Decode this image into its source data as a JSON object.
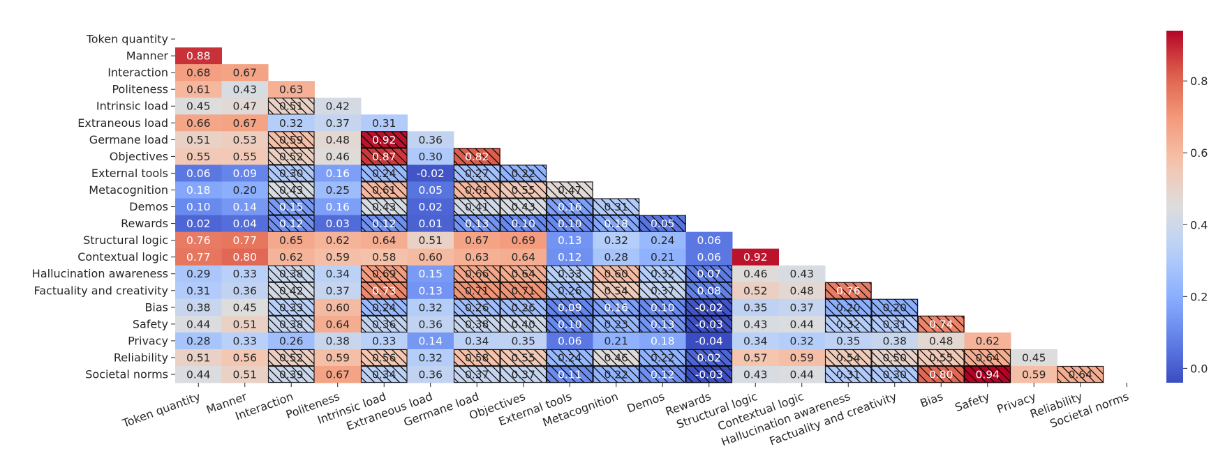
{
  "chart_data": {
    "type": "heatmap",
    "title": "",
    "xlabel": "",
    "ylabel": "",
    "row_labels": [
      "Token quantity",
      "Manner",
      "Interaction",
      "Politeness",
      "Intrinsic load",
      "Extraneous load",
      "Germane load",
      "Objectives",
      "External tools",
      "Metacognition",
      "Demos",
      "Rewards",
      "Structural logic",
      "Contextual logic",
      "Hallucination awareness",
      "Factuality and creativity",
      "Bias",
      "Safety",
      "Privacy",
      "Reliability",
      "Societal norms"
    ],
    "column_labels": [
      "Token quantity",
      "Manner",
      "Interaction",
      "Politeness",
      "Intrinsic load",
      "Extraneous load",
      "Germane load",
      "Objectives",
      "External tools",
      "Metacognition",
      "Demos",
      "Rewards",
      "Structural logic",
      "Contextual logic",
      "Hallucination awareness",
      "Factuality and creativity",
      "Bias",
      "Safety",
      "Privacy",
      "Reliability",
      "Societal norms"
    ],
    "values": [
      [],
      [
        0.88
      ],
      [
        0.68,
        0.67
      ],
      [
        0.61,
        0.43,
        0.63
      ],
      [
        0.45,
        0.47,
        0.51,
        0.42
      ],
      [
        0.66,
        0.67,
        0.32,
        0.37,
        0.31
      ],
      [
        0.51,
        0.53,
        0.59,
        0.48,
        0.92,
        0.36
      ],
      [
        0.55,
        0.55,
        0.52,
        0.46,
        0.87,
        0.3,
        0.82
      ],
      [
        0.06,
        0.09,
        0.3,
        0.16,
        0.24,
        -0.02,
        0.27,
        0.22
      ],
      [
        0.18,
        0.2,
        0.43,
        0.25,
        0.61,
        0.05,
        0.61,
        0.55,
        0.47
      ],
      [
        0.1,
        0.14,
        0.15,
        0.16,
        0.43,
        0.02,
        0.41,
        0.43,
        0.16,
        0.31
      ],
      [
        0.02,
        0.04,
        0.12,
        0.03,
        0.12,
        0.01,
        0.13,
        0.1,
        0.1,
        0.18,
        0.05
      ],
      [
        0.76,
        0.77,
        0.65,
        0.62,
        0.64,
        0.51,
        0.67,
        0.69,
        0.13,
        0.32,
        0.24,
        0.06
      ],
      [
        0.77,
        0.8,
        0.62,
        0.59,
        0.58,
        0.6,
        0.63,
        0.64,
        0.12,
        0.28,
        0.21,
        0.06,
        0.92
      ],
      [
        0.29,
        0.33,
        0.38,
        0.34,
        0.69,
        0.15,
        0.66,
        0.64,
        0.33,
        0.6,
        0.32,
        0.07,
        0.46,
        0.43
      ],
      [
        0.31,
        0.36,
        0.42,
        0.37,
        0.73,
        0.13,
        0.71,
        0.71,
        0.26,
        0.54,
        0.37,
        0.08,
        0.52,
        0.48,
        0.76
      ],
      [
        0.38,
        0.45,
        0.33,
        0.6,
        0.24,
        0.32,
        0.26,
        0.26,
        0.09,
        0.16,
        0.1,
        -0.02,
        0.35,
        0.37,
        0.2,
        0.2
      ],
      [
        0.44,
        0.51,
        0.38,
        0.64,
        0.36,
        0.36,
        0.38,
        0.4,
        0.1,
        0.23,
        0.13,
        -0.03,
        0.43,
        0.44,
        0.32,
        0.31,
        0.74
      ],
      [
        0.28,
        0.33,
        0.26,
        0.38,
        0.33,
        0.14,
        0.34,
        0.35,
        0.06,
        0.21,
        0.18,
        -0.04,
        0.34,
        0.32,
        0.35,
        0.38,
        0.48,
        0.62
      ],
      [
        0.51,
        0.56,
        0.52,
        0.59,
        0.56,
        0.32,
        0.58,
        0.55,
        0.24,
        0.46,
        0.22,
        0.02,
        0.57,
        0.59,
        0.54,
        0.5,
        0.55,
        0.64,
        0.45
      ],
      [
        0.44,
        0.51,
        0.39,
        0.67,
        0.34,
        0.36,
        0.37,
        0.37,
        0.11,
        0.22,
        0.12,
        -0.03,
        0.43,
        0.44,
        0.31,
        0.3,
        0.8,
        0.94,
        0.59,
        0.64
      ]
    ],
    "hatched": [
      [],
      [
        0
      ],
      [
        0,
        0
      ],
      [
        0,
        0,
        0
      ],
      [
        0,
        0,
        1,
        0
      ],
      [
        0,
        0,
        0,
        0,
        0
      ],
      [
        0,
        0,
        1,
        0,
        1,
        0
      ],
      [
        0,
        0,
        1,
        0,
        1,
        0,
        1
      ],
      [
        0,
        0,
        1,
        0,
        1,
        0,
        1,
        1
      ],
      [
        0,
        0,
        1,
        0,
        1,
        0,
        1,
        1,
        1
      ],
      [
        0,
        0,
        1,
        0,
        1,
        0,
        1,
        1,
        1,
        1
      ],
      [
        0,
        0,
        1,
        0,
        1,
        0,
        1,
        1,
        1,
        1,
        1
      ],
      [
        0,
        0,
        0,
        0,
        0,
        0,
        0,
        0,
        0,
        0,
        0,
        0
      ],
      [
        0,
        0,
        0,
        0,
        0,
        0,
        0,
        0,
        0,
        0,
        0,
        0,
        0
      ],
      [
        0,
        0,
        1,
        0,
        1,
        0,
        1,
        1,
        1,
        1,
        1,
        1,
        0,
        0
      ],
      [
        0,
        0,
        1,
        0,
        1,
        0,
        1,
        1,
        1,
        1,
        1,
        1,
        0,
        0,
        1
      ],
      [
        0,
        0,
        1,
        0,
        1,
        0,
        1,
        1,
        1,
        1,
        1,
        1,
        0,
        0,
        1,
        1
      ],
      [
        0,
        0,
        1,
        0,
        1,
        0,
        1,
        1,
        1,
        1,
        1,
        1,
        0,
        0,
        1,
        1,
        1
      ],
      [
        0,
        0,
        0,
        0,
        0,
        0,
        0,
        0,
        0,
        0,
        0,
        0,
        0,
        0,
        0,
        0,
        0,
        0
      ],
      [
        0,
        0,
        1,
        0,
        1,
        0,
        1,
        1,
        1,
        1,
        1,
        1,
        0,
        0,
        1,
        1,
        1,
        1,
        0
      ],
      [
        0,
        0,
        1,
        0,
        1,
        0,
        1,
        1,
        1,
        1,
        1,
        1,
        0,
        0,
        1,
        1,
        1,
        1,
        0,
        1
      ]
    ],
    "colormap": "coolwarm",
    "vmin": -0.04,
    "vmax": 0.94,
    "colorbar": {
      "ticks": [
        0.0,
        0.2,
        0.4,
        0.6,
        0.8
      ],
      "tick_labels": [
        "0.0",
        "0.2",
        "0.4",
        "0.6",
        "0.8"
      ],
      "position": "right"
    },
    "value_format": "0.00",
    "colors": {
      "hatch": "#000000",
      "text_dark": "#262626",
      "text_light": "#ffffff"
    }
  }
}
